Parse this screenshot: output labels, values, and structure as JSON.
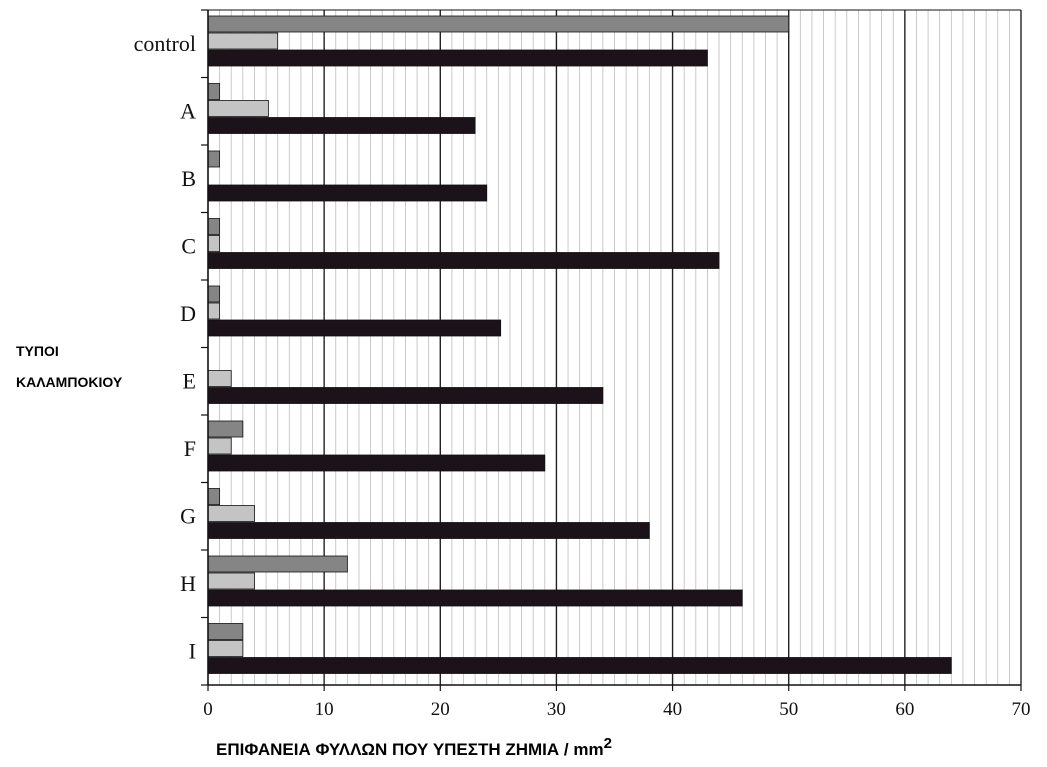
{
  "chart_data": {
    "type": "bar",
    "orientation": "horizontal",
    "title": "",
    "xlabel": "ΕΠΙΦΑΝΕΙΑ ΦΥΛΛΩΝ ΠΟΥ ΥΠΕΣΤΗ ΖΗΜΙΑ / mm",
    "xlabel_superscript": "2",
    "ylabel_lines": [
      "ΤΥΠΟΙ",
      "ΚΑΛΑΜΠΟΚΙΟΥ"
    ],
    "categories": [
      "control",
      "A",
      "B",
      "C",
      "D",
      "E",
      "F",
      "G",
      "H",
      "I"
    ],
    "xlim": [
      0,
      70
    ],
    "xticks": [
      0,
      10,
      20,
      30,
      40,
      50,
      60,
      70
    ],
    "grid": "vertical",
    "legend": "none",
    "series": [
      {
        "color": "#858585",
        "values": [
          50,
          1,
          1,
          1,
          1,
          0,
          3,
          1,
          12,
          3
        ]
      },
      {
        "color": "#c4c4c4",
        "values": [
          6,
          5.2,
          0,
          1,
          1,
          2,
          2,
          4,
          4,
          3
        ]
      },
      {
        "color": "#1c1219",
        "values": [
          43,
          23,
          24,
          44,
          25.2,
          34,
          29,
          38,
          46,
          64
        ]
      }
    ]
  }
}
